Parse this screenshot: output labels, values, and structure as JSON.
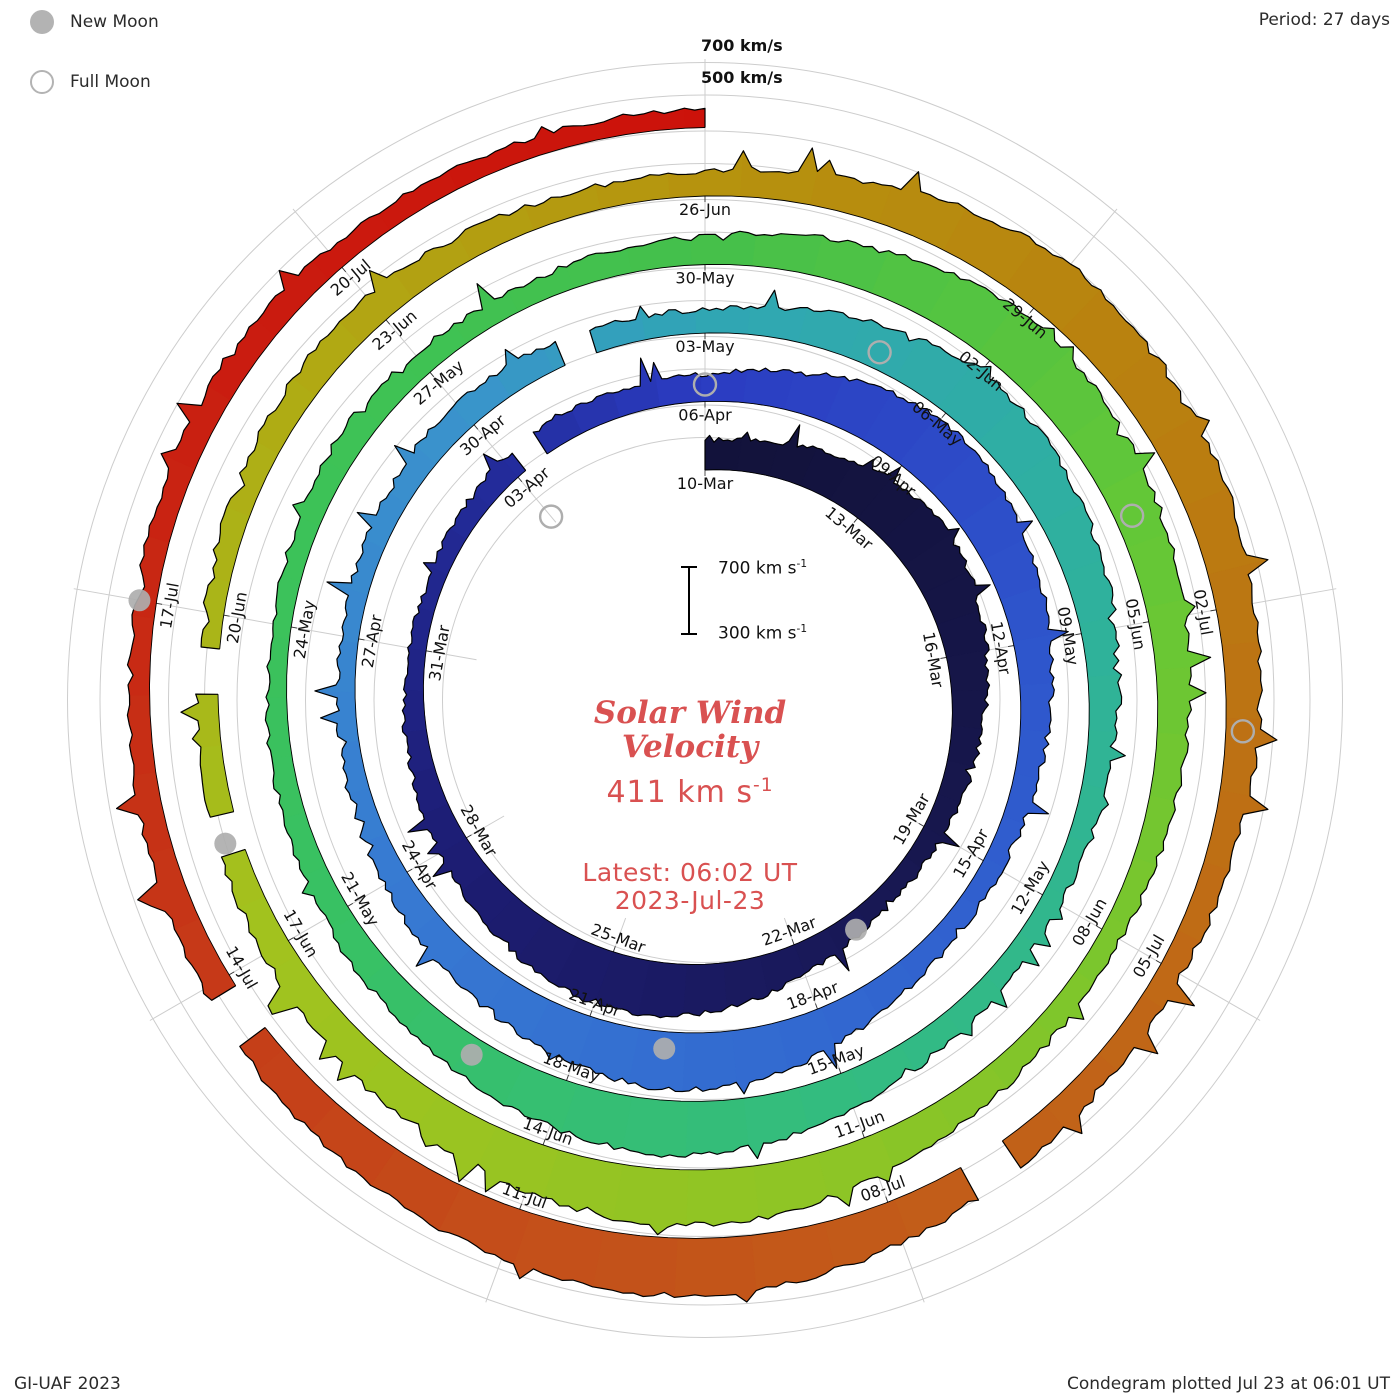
{
  "legend": {
    "new_moon": "New Moon",
    "full_moon": "Full Moon"
  },
  "header": {
    "period_label": "Period: 27 days"
  },
  "footer": {
    "credit": "GI-UAF 2023",
    "plotted": "Condegram plotted Jul 23 at 06:01 UT"
  },
  "scale": {
    "outer_700": "700 km/s",
    "outer_500": "500 km/s"
  },
  "center": {
    "title_line1": "Solar Wind",
    "title_line2": "Velocity",
    "value_text": "411 km s",
    "value_sup": "-1",
    "latest_line": "Latest: 06:02 UT",
    "date_line": "2023-Jul-23",
    "bar_top_text": "700 km s",
    "bar_bottom_text": "300 km s",
    "bar_sup": "-1"
  },
  "colors": {
    "text_red": "#d95151",
    "grid": "#cdcdcd",
    "moon_gray": "#aeaeae",
    "label_black": "#111111",
    "outline": "#000000"
  },
  "chart_data": {
    "type": "line",
    "subtype": "polar-spiral-condegram",
    "title": "Solar Wind Velocity",
    "latest_value_km_s": 411,
    "latest_time": "Latest: 06:02 UT",
    "latest_date": "2023-Jul-23",
    "period_days": 27,
    "start_date": "2023-Mar-10",
    "end_date": "2023-Jul-23",
    "rotation_start_dates": [
      "10-Mar",
      "06-Apr",
      "03-May",
      "30-May",
      "26-Jun"
    ],
    "radial_axis": {
      "velocity_min": 300,
      "velocity_max": 700,
      "units": "km/s",
      "gridline_values": [
        500,
        700
      ]
    },
    "date_labels": [
      {
        "day": 0,
        "label": "10-Mar"
      },
      {
        "day": 3,
        "label": "13-Mar"
      },
      {
        "day": 6,
        "label": "16-Mar"
      },
      {
        "day": 9,
        "label": "19-Mar"
      },
      {
        "day": 12,
        "label": "22-Mar"
      },
      {
        "day": 15,
        "label": "25-Mar"
      },
      {
        "day": 18,
        "label": "28-Mar"
      },
      {
        "day": 21,
        "label": "31-Mar"
      },
      {
        "day": 24,
        "label": "03-Apr"
      },
      {
        "day": 27,
        "label": "06-Apr"
      },
      {
        "day": 30,
        "label": "09-Apr"
      },
      {
        "day": 33,
        "label": "12-Apr"
      },
      {
        "day": 36,
        "label": "15-Apr"
      },
      {
        "day": 39,
        "label": "18-Apr"
      },
      {
        "day": 42,
        "label": "21-Apr"
      },
      {
        "day": 45,
        "label": "24-Apr"
      },
      {
        "day": 48,
        "label": "27-Apr"
      },
      {
        "day": 51,
        "label": "30-Apr"
      },
      {
        "day": 54,
        "label": "03-May"
      },
      {
        "day": 57,
        "label": "06-May"
      },
      {
        "day": 60,
        "label": "09-May"
      },
      {
        "day": 63,
        "label": "12-May"
      },
      {
        "day": 66,
        "label": "15-May"
      },
      {
        "day": 69,
        "label": "18-May"
      },
      {
        "day": 72,
        "label": "21-May"
      },
      {
        "day": 75,
        "label": "24-May"
      },
      {
        "day": 78,
        "label": "27-May"
      },
      {
        "day": 81,
        "label": "30-May"
      },
      {
        "day": 84,
        "label": "02-Jun"
      },
      {
        "day": 87,
        "label": "05-Jun"
      },
      {
        "day": 90,
        "label": "08-Jun"
      },
      {
        "day": 93,
        "label": "11-Jun"
      },
      {
        "day": 96,
        "label": "14-Jun"
      },
      {
        "day": 99,
        "label": "17-Jun"
      },
      {
        "day": 102,
        "label": "20-Jun"
      },
      {
        "day": 105,
        "label": "23-Jun"
      },
      {
        "day": 108,
        "label": "26-Jun"
      },
      {
        "day": 111,
        "label": "29-Jun"
      },
      {
        "day": 114,
        "label": "02-Jul"
      },
      {
        "day": 117,
        "label": "05-Jul"
      },
      {
        "day": 120,
        "label": "08-Jul"
      },
      {
        "day": 123,
        "label": "11-Jul"
      },
      {
        "day": 126,
        "label": "14-Jul"
      },
      {
        "day": 129,
        "label": "17-Jul"
      },
      {
        "day": 132,
        "label": "20-Jul"
      }
    ],
    "daily_velocity_km_s": [
      480,
      505,
      555,
      615,
      645,
      605,
      550,
      498,
      458,
      432,
      416,
      436,
      492,
      566,
      626,
      646,
      596,
      536,
      486,
      450,
      425,
      406,
      396,
      416,
      446,
      466,
      450,
      466,
      526,
      616,
      676,
      646,
      586,
      526,
      478,
      440,
      422,
      432,
      472,
      552,
      628,
      658,
      608,
      548,
      498,
      458,
      432,
      412,
      402,
      422,
      452,
      478,
      462,
      442,
      446,
      496,
      576,
      641,
      618,
      568,
      518,
      472,
      442,
      422,
      432,
      462,
      532,
      602,
      638,
      598,
      548,
      498,
      462,
      440,
      422,
      412,
      432,
      462,
      442,
      432,
      452,
      472,
      532,
      602,
      658,
      628,
      578,
      528,
      488,
      452,
      432,
      442,
      482,
      552,
      622,
      648,
      608,
      558,
      508,
      472,
      452,
      432,
      422,
      442,
      472,
      488,
      462,
      442,
      452,
      502,
      582,
      648,
      628,
      588,
      538,
      498,
      462,
      442,
      452,
      492,
      562,
      632,
      658,
      618,
      568,
      518,
      482,
      452,
      432,
      422,
      442,
      462,
      442,
      425,
      415,
      411
    ],
    "data_gap_day_ranges": [
      [
        24.15,
        24.55
      ],
      [
        52.3,
        52.7
      ],
      [
        99.9,
        100.25
      ],
      [
        101.3,
        101.7
      ],
      [
        118.95,
        119.35
      ],
      [
        125.5,
        125.9
      ]
    ],
    "new_moons": [
      {
        "date": "21-Mar",
        "day": 11
      },
      {
        "date": "20-Apr",
        "day": 41
      },
      {
        "date": "19-May",
        "day": 70
      },
      {
        "date": "18-Jun",
        "day": 100
      },
      {
        "date": "17-Jul",
        "day": 129
      }
    ],
    "full_moons": [
      {
        "date": "07-Mar",
        "day": -3
      },
      {
        "date": "06-Apr",
        "day": 27
      },
      {
        "date": "05-May",
        "day": 56
      },
      {
        "date": "04-Jun",
        "day": 86
      },
      {
        "date": "03-Jul",
        "day": 115
      }
    ],
    "color_stops": [
      [
        0,
        "#12123a"
      ],
      [
        9,
        "#17174e"
      ],
      [
        18,
        "#1d1d74"
      ],
      [
        24,
        "#232c9c"
      ],
      [
        27,
        "#2b3cc2"
      ],
      [
        33,
        "#2e55cc"
      ],
      [
        39,
        "#3268d0"
      ],
      [
        45,
        "#377ad2"
      ],
      [
        51,
        "#3a93cc"
      ],
      [
        54,
        "#30a6b4"
      ],
      [
        60,
        "#2fb29b"
      ],
      [
        66,
        "#33bc80"
      ],
      [
        72,
        "#38c163"
      ],
      [
        78,
        "#3fc253"
      ],
      [
        81,
        "#45c04b"
      ],
      [
        86,
        "#63c737"
      ],
      [
        93,
        "#8cc526"
      ],
      [
        99,
        "#a2c31e"
      ],
      [
        104,
        "#b0ab14"
      ],
      [
        108,
        "#b6930e"
      ],
      [
        113,
        "#ba7c10"
      ],
      [
        118,
        "#c16418"
      ],
      [
        123,
        "#c44e1a"
      ],
      [
        127,
        "#c63417"
      ],
      [
        131,
        "#ca1c10"
      ],
      [
        135,
        "#cc120a"
      ]
    ]
  }
}
